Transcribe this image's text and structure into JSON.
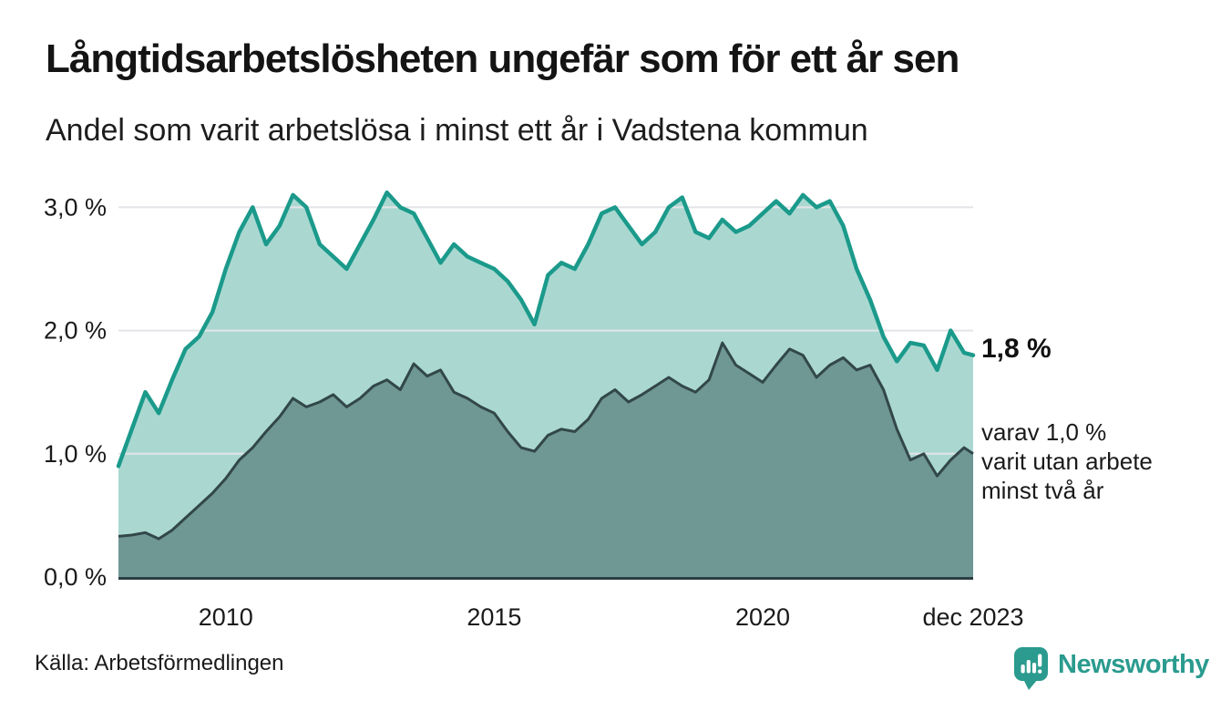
{
  "header": {
    "title": "Långtidsarbetslösheten ungefär som för ett år sen",
    "subtitle": "Andel som varit arbetslösa i minst ett år i Vadstena kommun"
  },
  "footer": {
    "source": "Källa: Arbetsförmedlingen",
    "brand": "Newsworthy",
    "brand_color": "#2a9b8e"
  },
  "chart_data": {
    "type": "area",
    "title": "Långtidsarbetslösheten ungefär som för ett år sen",
    "subtitle": "Andel som varit arbetslösa i minst ett år i Vadstena kommun",
    "unit": "%",
    "xlim": [
      2008,
      2023.92
    ],
    "ylim": [
      0,
      3.24
    ],
    "grid": true,
    "grid_color": "#e3e4e7",
    "axis_color": "#2c3e41",
    "yticks": [
      {
        "v": 0,
        "label": "0,0 %"
      },
      {
        "v": 1,
        "label": "1,0 %"
      },
      {
        "v": 2,
        "label": "2,0 %"
      },
      {
        "v": 3,
        "label": "3,0 %"
      }
    ],
    "xticks": [
      {
        "v": 2010,
        "label": "2010"
      },
      {
        "v": 2015,
        "label": "2015"
      },
      {
        "v": 2020,
        "label": "2020"
      },
      {
        "v": 2023.92,
        "label": "dec 2023"
      }
    ],
    "x": [
      2008,
      2008.25,
      2008.5,
      2008.75,
      2009,
      2009.25,
      2009.5,
      2009.75,
      2010,
      2010.25,
      2010.5,
      2010.75,
      2011,
      2011.25,
      2011.5,
      2011.75,
      2012,
      2012.25,
      2012.5,
      2012.75,
      2013,
      2013.25,
      2013.5,
      2013.75,
      2014,
      2014.25,
      2014.5,
      2014.75,
      2015,
      2015.25,
      2015.5,
      2015.75,
      2016,
      2016.25,
      2016.5,
      2016.75,
      2017,
      2017.25,
      2017.5,
      2017.75,
      2018,
      2018.25,
      2018.5,
      2018.75,
      2019,
      2019.25,
      2019.5,
      2019.75,
      2020,
      2020.25,
      2020.5,
      2020.75,
      2021,
      2021.25,
      2021.5,
      2021.75,
      2022,
      2022.25,
      2022.5,
      2022.75,
      2023,
      2023.25,
      2023.5,
      2023.75,
      2023.92
    ],
    "series": [
      {
        "name": "Andel arbetslösa minst ett år",
        "line_color": "#1b9a8b",
        "fill_color": "#aad8d1",
        "values": [
          0.9,
          1.2,
          1.5,
          1.33,
          1.6,
          1.85,
          1.95,
          2.15,
          2.5,
          2.8,
          3.0,
          2.7,
          2.85,
          3.1,
          3.0,
          2.7,
          2.6,
          2.5,
          2.7,
          2.9,
          3.12,
          3.0,
          2.95,
          2.75,
          2.55,
          2.7,
          2.6,
          2.55,
          2.5,
          2.4,
          2.25,
          2.05,
          2.45,
          2.55,
          2.5,
          2.7,
          2.95,
          3.0,
          2.85,
          2.7,
          2.8,
          3.0,
          3.08,
          2.8,
          2.75,
          2.9,
          2.8,
          2.85,
          2.95,
          3.05,
          2.95,
          3.1,
          3.0,
          3.05,
          2.85,
          2.5,
          2.25,
          1.95,
          1.75,
          1.9,
          1.88,
          1.68,
          2.0,
          1.82,
          1.8
        ]
      },
      {
        "name": "varav arbetslösa minst två år",
        "line_color": "#32474a",
        "fill_color": "#6f9793",
        "values": [
          0.33,
          0.34,
          0.36,
          0.31,
          0.38,
          0.48,
          0.58,
          0.68,
          0.8,
          0.95,
          1.05,
          1.18,
          1.3,
          1.45,
          1.38,
          1.42,
          1.48,
          1.38,
          1.45,
          1.55,
          1.6,
          1.52,
          1.73,
          1.63,
          1.68,
          1.5,
          1.45,
          1.38,
          1.33,
          1.18,
          1.05,
          1.02,
          1.15,
          1.2,
          1.18,
          1.28,
          1.45,
          1.52,
          1.42,
          1.48,
          1.55,
          1.62,
          1.55,
          1.5,
          1.6,
          1.9,
          1.72,
          1.65,
          1.58,
          1.72,
          1.85,
          1.8,
          1.62,
          1.72,
          1.78,
          1.68,
          1.72,
          1.52,
          1.2,
          0.95,
          1.0,
          0.82,
          0.95,
          1.05,
          1.0
        ]
      }
    ],
    "annotations": {
      "value_label": "1,8 %",
      "sub_label": "varav 1,0 %\nvarit utan arbete\nminst två år"
    }
  }
}
